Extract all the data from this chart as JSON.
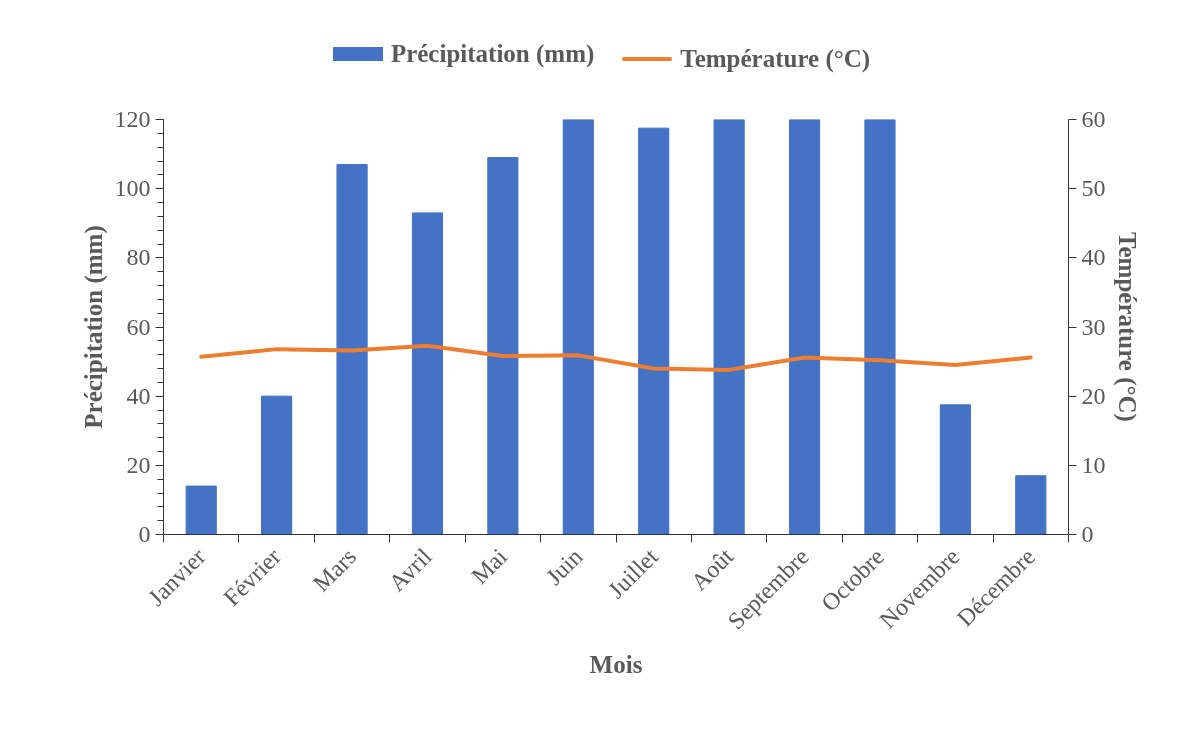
{
  "chart_data": {
    "type": "bar",
    "categories": [
      "Janvier",
      "Février",
      "Mars",
      "Avril",
      "Mai",
      "Juin",
      "Juillet",
      "Août",
      "Septembre",
      "Octobre",
      "Novembre",
      "Décembre"
    ],
    "xlabel": "Mois",
    "ylabel": "Précipitation (mm)",
    "y2label": "Température (°C)",
    "series": [
      {
        "name": "Précipitation (mm)",
        "color": "#4472c4",
        "values": [
          14,
          40,
          107,
          93,
          109,
          120,
          117.5,
          120,
          120,
          120,
          37.5,
          17
        ]
      },
      {
        "name": "Température (°C)",
        "type": "line",
        "axis": "y2",
        "color": "#ed7d31",
        "values": [
          25.7,
          26.8,
          26.6,
          27.3,
          25.8,
          25.9,
          24.0,
          23.8,
          25.6,
          25.2,
          24.5,
          25.6
        ]
      }
    ],
    "ylim": [
      0,
      120
    ],
    "yticks": [
      0,
      20,
      40,
      60,
      80,
      100,
      120
    ],
    "y2lim": [
      0,
      60
    ],
    "y2ticks": [
      0,
      10,
      20,
      30,
      40,
      50,
      60
    ],
    "grid": false,
    "legend": "top"
  }
}
